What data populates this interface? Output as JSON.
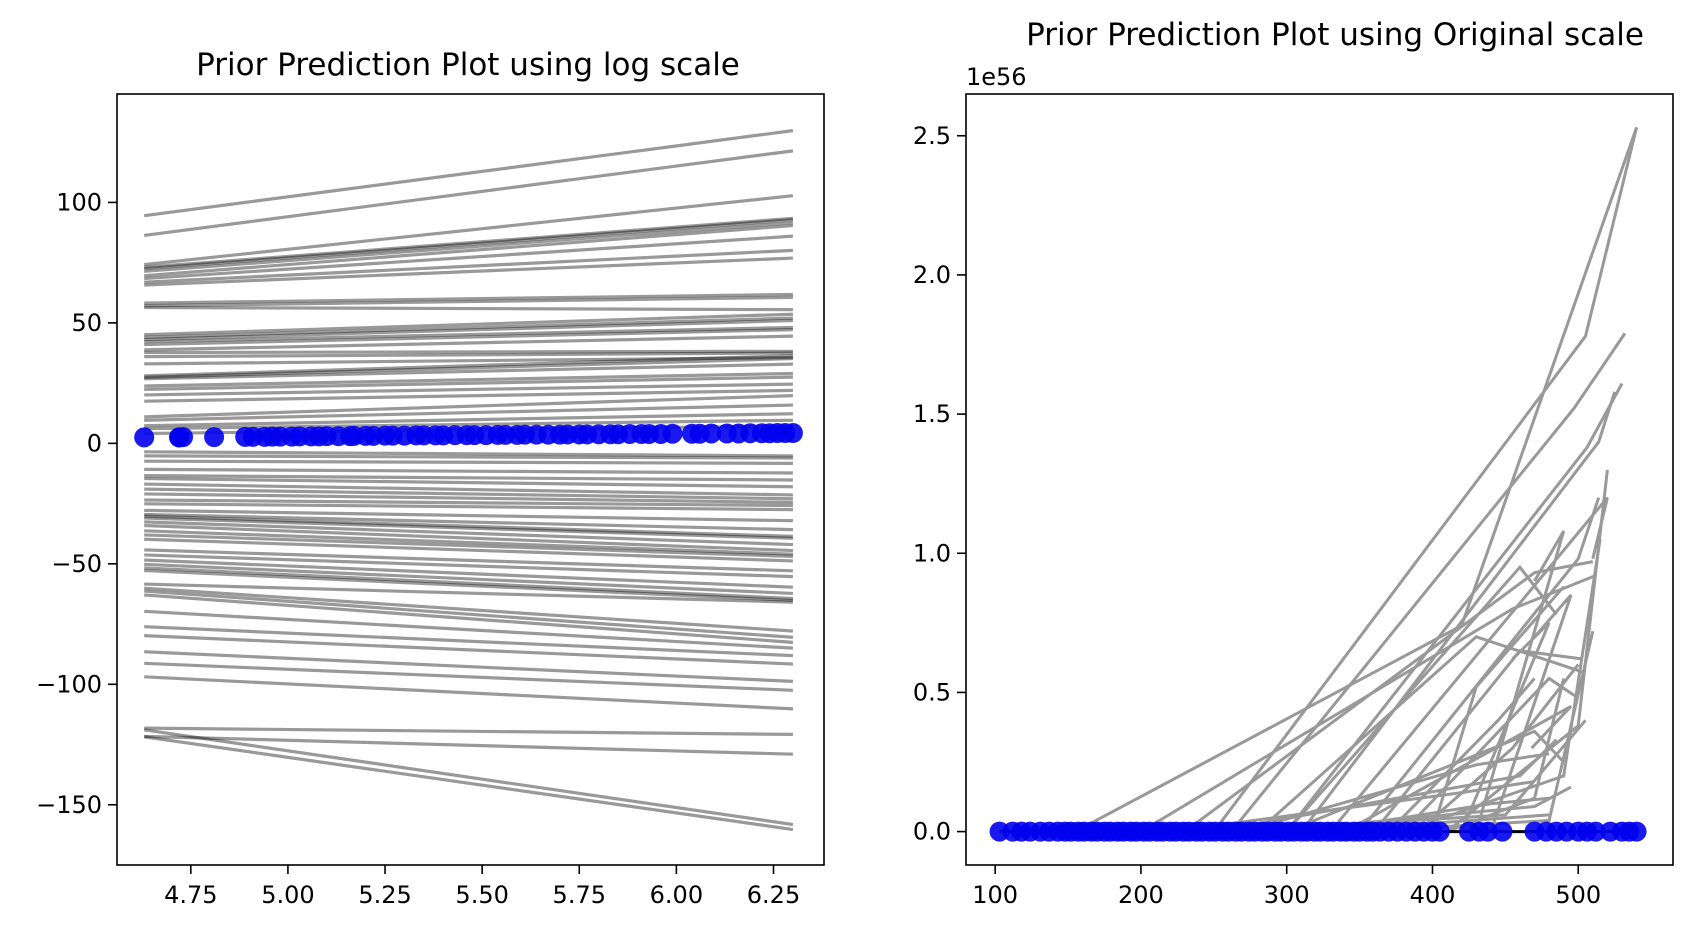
{
  "chart_data": [
    {
      "type": "line",
      "title": "Prior Prediction Plot using log scale",
      "xlabel": "",
      "ylabel": "",
      "xlim": [
        4.56,
        6.38
      ],
      "ylim": [
        -175,
        145
      ],
      "xticks": [
        4.75,
        5.0,
        5.25,
        5.5,
        5.75,
        6.0,
        6.25
      ],
      "xtick_labels": [
        "4.75",
        "5.00",
        "5.25",
        "5.50",
        "5.75",
        "6.00",
        "6.25"
      ],
      "yticks": [
        -150,
        -100,
        -50,
        0,
        50,
        100
      ],
      "ytick_labels": [
        "−150",
        "−100",
        "−50",
        "0",
        "50",
        "100"
      ],
      "grid": false,
      "line_color": "#000000",
      "line_opacity": 0.4,
      "scatter_color": "#0000ee",
      "prior_lines_x": [
        4.63,
        6.3
      ],
      "prior_lines": [
        [
          94.5,
          129.8
        ],
        [
          86.3,
          121.4
        ],
        [
          74.2,
          102.8
        ],
        [
          73.1,
          93.4
        ],
        [
          72.5,
          92.8
        ],
        [
          71.4,
          91.6
        ],
        [
          69.6,
          90.4
        ],
        [
          68.4,
          86.0
        ],
        [
          66.9,
          80.1
        ],
        [
          65.7,
          76.9
        ],
        [
          58.2,
          61.8
        ],
        [
          57.1,
          60.6
        ],
        [
          56.4,
          55.5
        ],
        [
          45.1,
          53.6
        ],
        [
          44.0,
          52.0
        ],
        [
          43.1,
          51.0
        ],
        [
          42.2,
          48.1
        ],
        [
          41.0,
          47.2
        ],
        [
          38.8,
          44.5
        ],
        [
          37.7,
          38.2
        ],
        [
          36.0,
          37.5
        ],
        [
          33.0,
          35.6
        ],
        [
          28.0,
          36.4
        ],
        [
          27.4,
          35.2
        ],
        [
          26.8,
          32.9
        ],
        [
          23.8,
          29.0
        ],
        [
          22.4,
          27.5
        ],
        [
          20.1,
          24.6
        ],
        [
          17.5,
          22.0
        ],
        [
          11.0,
          19.8
        ],
        [
          9.6,
          15.9
        ],
        [
          7.3,
          12.3
        ],
        [
          6.1,
          9.6
        ],
        [
          4.1,
          7.2
        ],
        [
          -3.5,
          -5.2
        ],
        [
          -5.2,
          -6.1
        ],
        [
          -7.4,
          -8.3
        ],
        [
          -10.8,
          -12.3
        ],
        [
          -13.4,
          -15.2
        ],
        [
          -14.6,
          -18.0
        ],
        [
          -16.9,
          -21.4
        ],
        [
          -19.0,
          -23.0
        ],
        [
          -21.0,
          -24.5
        ],
        [
          -23.5,
          -25.8
        ],
        [
          -25.1,
          -27.5
        ],
        [
          -27.8,
          -32.1
        ],
        [
          -29.5,
          -35.8
        ],
        [
          -30.2,
          -38.6
        ],
        [
          -31.0,
          -39.4
        ],
        [
          -32.6,
          -42.0
        ],
        [
          -34.1,
          -44.5
        ],
        [
          -36.3,
          -46.0
        ],
        [
          -38.0,
          -46.9
        ],
        [
          -39.8,
          -48.8
        ],
        [
          -44.2,
          -52.9
        ],
        [
          -46.3,
          -55.3
        ],
        [
          -48.4,
          -59.7
        ],
        [
          -50.2,
          -62.3
        ],
        [
          -51.7,
          -64.4
        ],
        [
          -52.8,
          -65.2
        ],
        [
          -58.4,
          -65.9
        ],
        [
          -60.1,
          -77.9
        ],
        [
          -61.3,
          -80.5
        ],
        [
          -62.9,
          -82.6
        ],
        [
          -69.7,
          -85.0
        ],
        [
          -76.1,
          -88.1
        ],
        [
          -79.8,
          -91.6
        ],
        [
          -86.5,
          -98.8
        ],
        [
          -91.3,
          -102.5
        ],
        [
          -96.9,
          -110.2
        ],
        [
          -118.2,
          -120.8
        ],
        [
          -121.6,
          -129.0
        ],
        [
          -118.9,
          -158.2
        ],
        [
          -121.8,
          -160.3
        ]
      ],
      "observed_points": {
        "x": [
          4.63,
          4.72,
          4.72,
          4.73,
          4.81,
          4.89,
          4.91,
          4.94,
          4.96,
          4.98,
          5.01,
          5.03,
          5.06,
          5.08,
          5.1,
          5.13,
          5.16,
          5.17,
          5.2,
          5.22,
          5.25,
          5.27,
          5.3,
          5.33,
          5.35,
          5.38,
          5.4,
          5.43,
          5.46,
          5.48,
          5.51,
          5.54,
          5.56,
          5.59,
          5.61,
          5.64,
          5.67,
          5.7,
          5.72,
          5.75,
          5.77,
          5.8,
          5.83,
          5.85,
          5.88,
          5.91,
          5.93,
          5.96,
          5.99,
          6.04,
          6.06,
          6.09,
          6.13,
          6.16,
          6.19,
          6.22,
          6.24,
          6.26,
          6.28,
          6.3
        ],
        "y": [
          2.5,
          2.5,
          2.5,
          2.6,
          2.6,
          2.7,
          2.7,
          2.7,
          2.8,
          2.8,
          2.8,
          2.9,
          2.9,
          2.9,
          3.0,
          3.0,
          3.0,
          3.1,
          3.1,
          3.1,
          3.2,
          3.2,
          3.2,
          3.3,
          3.3,
          3.3,
          3.3,
          3.4,
          3.4,
          3.4,
          3.4,
          3.5,
          3.5,
          3.5,
          3.6,
          3.6,
          3.6,
          3.6,
          3.7,
          3.7,
          3.7,
          3.8,
          3.8,
          3.8,
          3.9,
          3.9,
          3.9,
          3.9,
          4.0,
          4.0,
          4.0,
          4.1,
          4.1,
          4.1,
          4.2,
          4.2,
          4.2,
          4.3,
          4.3,
          4.3
        ]
      }
    },
    {
      "type": "line",
      "title": "Prior Prediction Plot using Original scale",
      "xlabel": "",
      "ylabel": "",
      "offset_text": "1e56",
      "xlim": [
        80,
        565
      ],
      "ylim": [
        -0.12,
        2.65
      ],
      "xticks": [
        100,
        200,
        300,
        400,
        500
      ],
      "xtick_labels": [
        "100",
        "200",
        "300",
        "400",
        "500"
      ],
      "yticks": [
        0.0,
        0.5,
        1.0,
        1.5,
        2.0,
        2.5
      ],
      "ytick_labels": [
        "0.0",
        "0.5",
        "1.0",
        "1.5",
        "2.0",
        "2.5"
      ],
      "grid": false,
      "line_color": "#999999",
      "scatter_color": "#0000ee",
      "zero_line_color": "#000000",
      "prior_lines": [
        [
          [
            155,
            0.0
          ],
          [
            420,
            0.74
          ],
          [
            540,
            2.53
          ]
        ],
        [
          [
            250,
            0.0
          ],
          [
            505,
            1.78
          ],
          [
            540,
            2.53
          ]
        ],
        [
          [
            262,
            0.0
          ],
          [
            497,
            1.52
          ],
          [
            532,
            1.79
          ]
        ],
        [
          [
            300,
            0.0
          ],
          [
            506,
            1.38
          ],
          [
            530,
            1.61
          ]
        ],
        [
          [
            310,
            0.0
          ],
          [
            514,
            1.4
          ],
          [
            525,
            1.58
          ]
        ],
        [
          [
            330,
            0.0
          ],
          [
            520,
            1.2
          ],
          [
            510,
            0.98
          ]
        ],
        [
          [
            350,
            0.0
          ],
          [
            500,
            0.98
          ],
          [
            514,
            1.2
          ]
        ],
        [
          [
            230,
            0.0
          ],
          [
            470,
            0.93
          ],
          [
            510,
            0.97
          ]
        ],
        [
          [
            200,
            0.0
          ],
          [
            455,
            0.8
          ],
          [
            512,
            0.92
          ]
        ],
        [
          [
            280,
            0.0
          ],
          [
            430,
            0.7
          ],
          [
            505,
            0.57
          ]
        ],
        [
          [
            360,
            0.0
          ],
          [
            460,
            0.65
          ],
          [
            503,
            0.62
          ]
        ],
        [
          [
            380,
            0.0
          ],
          [
            480,
            0.55
          ],
          [
            500,
            0.48
          ]
        ],
        [
          [
            340,
            0.0
          ],
          [
            495,
            0.45
          ],
          [
            468,
            0.3
          ]
        ],
        [
          [
            300,
            0.0
          ],
          [
            470,
            0.36
          ],
          [
            490,
            0.25
          ]
        ],
        [
          [
            270,
            0.0
          ],
          [
            430,
            0.24
          ],
          [
            480,
            0.28
          ]
        ],
        [
          [
            250,
            0.0
          ],
          [
            460,
            0.2
          ],
          [
            485,
            0.33
          ]
        ],
        [
          [
            220,
            0.0
          ],
          [
            420,
            0.14
          ],
          [
            470,
            0.18
          ]
        ],
        [
          [
            320,
            0.0
          ],
          [
            440,
            0.1
          ],
          [
            480,
            0.12
          ]
        ],
        [
          [
            290,
            0.0
          ],
          [
            470,
            0.09
          ],
          [
            495,
            0.16
          ]
        ],
        [
          [
            260,
            0.0
          ],
          [
            450,
            0.06
          ],
          [
            505,
            0.4
          ]
        ],
        [
          [
            200,
            0.0
          ],
          [
            400,
            0.03
          ],
          [
            480,
            0.06
          ]
        ],
        [
          [
            350,
            0.0
          ],
          [
            480,
            0.04
          ],
          [
            510,
            0.72
          ]
        ],
        [
          [
            410,
            0.0
          ],
          [
            470,
            0.12
          ],
          [
            490,
            0.55
          ]
        ],
        [
          [
            390,
            0.0
          ],
          [
            455,
            0.3
          ],
          [
            500,
            0.6
          ]
        ],
        [
          [
            370,
            0.0
          ],
          [
            445,
            0.4
          ],
          [
            470,
            0.55
          ]
        ],
        [
          [
            400,
            0.0
          ],
          [
            430,
            0.52
          ],
          [
            490,
            0.88
          ]
        ],
        [
          [
            420,
            0.0
          ],
          [
            480,
            0.75
          ],
          [
            455,
            0.62
          ]
        ],
        [
          [
            440,
            0.0
          ],
          [
            495,
            0.85
          ],
          [
            470,
            0.7
          ]
        ],
        [
          [
            300,
            0.0
          ],
          [
            460,
            0.95
          ],
          [
            485,
            0.78
          ]
        ],
        [
          [
            430,
            0.0
          ],
          [
            490,
            1.08
          ],
          [
            470,
            0.9
          ]
        ],
        [
          [
            410,
            0.0
          ],
          [
            500,
            0.38
          ],
          [
            520,
            1.3
          ]
        ],
        [
          [
            380,
            0.0
          ],
          [
            490,
            0.2
          ],
          [
            515,
            1.05
          ]
        ]
      ],
      "observed_points": {
        "x": [
          103,
          112,
          118,
          124,
          131,
          137,
          143,
          148,
          152,
          157,
          161,
          166,
          170,
          175,
          179,
          184,
          188,
          193,
          197,
          202,
          206,
          211,
          215,
          220,
          224,
          229,
          233,
          238,
          242,
          247,
          251,
          256,
          260,
          265,
          269,
          274,
          278,
          283,
          287,
          292,
          296,
          301,
          305,
          310,
          314,
          319,
          323,
          328,
          332,
          337,
          341,
          346,
          350,
          355,
          359,
          364,
          370,
          376,
          382,
          388,
          394,
          400,
          405,
          425,
          432,
          438,
          448,
          470,
          478,
          485,
          492,
          500,
          506,
          512,
          522,
          530,
          535,
          540
        ],
        "y": [
          0.0,
          0.0,
          0.0,
          0.0,
          0.0,
          0.0,
          0.0,
          0.0,
          0.0,
          0.0,
          0.0,
          0.0,
          0.0,
          0.0,
          0.0,
          0.0,
          0.0,
          0.0,
          0.0,
          0.0,
          0.0,
          0.0,
          0.0,
          0.0,
          0.0,
          0.0,
          0.0,
          0.0,
          0.0,
          0.0,
          0.0,
          0.0,
          0.0,
          0.0,
          0.0,
          0.0,
          0.0,
          0.0,
          0.0,
          0.0,
          0.0,
          0.0,
          0.0,
          0.0,
          0.0,
          0.0,
          0.0,
          0.0,
          0.0,
          0.0,
          0.0,
          0.0,
          0.0,
          0.0,
          0.0,
          0.0,
          0.0,
          0.0,
          0.0,
          0.0,
          0.0,
          0.0,
          0.0,
          0.0,
          0.0,
          0.0,
          0.0,
          0.0,
          0.0,
          0.0,
          0.0,
          0.0,
          0.0,
          0.0,
          0.0,
          0.0,
          0.0,
          0.0
        ]
      }
    }
  ]
}
